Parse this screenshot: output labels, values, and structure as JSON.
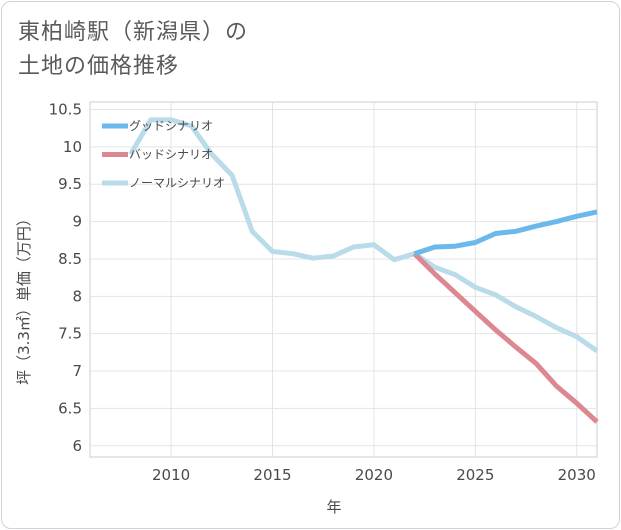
{
  "title": {
    "line1": "東柏崎駅（新潟県）の",
    "line2": "土地の価格推移"
  },
  "chart_data": {
    "type": "line",
    "xlabel": "年",
    "ylabel": "坪（3.3㎡）単価（万円）",
    "xlim": [
      2006,
      2031
    ],
    "ylim": [
      5.85,
      10.6
    ],
    "x_ticks": [
      2010,
      2015,
      2020,
      2025,
      2030
    ],
    "y_ticks": [
      6,
      6.5,
      7,
      7.5,
      8,
      8.5,
      9,
      9.5,
      10,
      10.5
    ],
    "grid": true,
    "legend_position": "top-left",
    "series": [
      {
        "name": "グッドシナリオ",
        "color": "#6bb8ec",
        "x": [
          2022,
          2023,
          2024,
          2025,
          2026,
          2027,
          2028,
          2029,
          2030,
          2031
        ],
        "y": [
          8.57,
          8.66,
          8.67,
          8.72,
          8.84,
          8.87,
          8.94,
          9.0,
          9.07,
          9.13
        ]
      },
      {
        "name": "バッドシナリオ",
        "color": "#dd8791",
        "x": [
          2022,
          2023,
          2024,
          2025,
          2026,
          2027,
          2028,
          2029,
          2030,
          2031
        ],
        "y": [
          8.57,
          8.3,
          8.05,
          7.8,
          7.55,
          7.32,
          7.1,
          6.8,
          6.57,
          6.32
        ]
      },
      {
        "name": "ノーマルシナリオ",
        "color": "#badbea",
        "x": [
          2008,
          2009,
          2010,
          2011,
          2012,
          2013,
          2014,
          2015,
          2016,
          2017,
          2018,
          2019,
          2020,
          2021,
          2022,
          2023,
          2024,
          2025,
          2026,
          2027,
          2028,
          2029,
          2030,
          2031
        ],
        "y": [
          9.9,
          10.36,
          10.36,
          10.28,
          9.9,
          9.62,
          8.87,
          8.6,
          8.57,
          8.51,
          8.54,
          8.66,
          8.69,
          8.49,
          8.57,
          8.39,
          8.29,
          8.12,
          8.02,
          7.86,
          7.73,
          7.58,
          7.46,
          7.27
        ]
      }
    ]
  }
}
